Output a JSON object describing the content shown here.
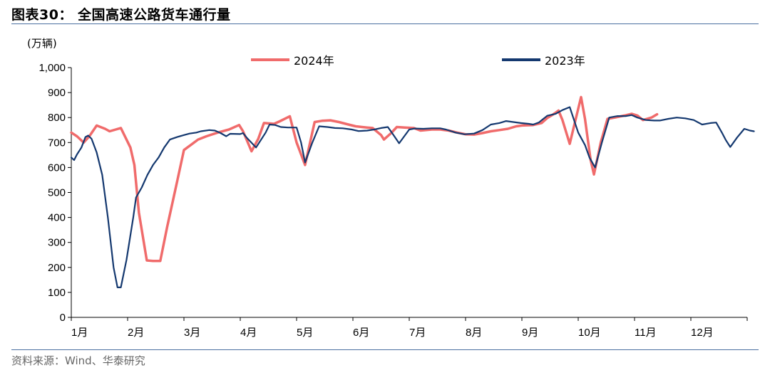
{
  "title": "图表30： 全国高速公路货车通行量",
  "source": "资料来源：Wind、华泰研究",
  "chart_data": {
    "type": "line",
    "unit": "(万辆)",
    "ylim": [
      0,
      1000
    ],
    "yticks": [
      0,
      100,
      200,
      300,
      400,
      500,
      600,
      700,
      800,
      900,
      1000
    ],
    "ytick_labels": [
      "0",
      "100",
      "200",
      "300",
      "400",
      "500",
      "600",
      "700",
      "800",
      "900",
      "1,000"
    ],
    "xlim": [
      1,
      13
    ],
    "xticks": [
      1,
      2,
      3,
      4,
      5,
      6,
      7,
      8,
      9,
      10,
      11,
      12
    ],
    "xtick_labels": [
      "1月",
      "2月",
      "3月",
      "4月",
      "5月",
      "6月",
      "7月",
      "8月",
      "9月",
      "10月",
      "11月",
      "12月"
    ],
    "legend_position": "top",
    "series": [
      {
        "name": "2024年",
        "color": "#f06b6b",
        "points": [
          [
            1.0,
            740
          ],
          [
            1.1,
            725
          ],
          [
            1.22,
            700
          ],
          [
            1.32,
            725
          ],
          [
            1.45,
            768
          ],
          [
            1.6,
            755
          ],
          [
            1.68,
            745
          ],
          [
            1.88,
            758
          ],
          [
            2.05,
            680
          ],
          [
            2.12,
            610
          ],
          [
            2.2,
            420
          ],
          [
            2.34,
            228
          ],
          [
            2.45,
            226
          ],
          [
            2.58,
            226
          ],
          [
            2.7,
            360
          ],
          [
            2.88,
            545
          ],
          [
            3.0,
            670
          ],
          [
            3.12,
            690
          ],
          [
            3.25,
            712
          ],
          [
            3.4,
            725
          ],
          [
            3.6,
            740
          ],
          [
            3.8,
            752
          ],
          [
            3.98,
            770
          ],
          [
            4.05,
            745
          ],
          [
            4.2,
            665
          ],
          [
            4.32,
            715
          ],
          [
            4.42,
            778
          ],
          [
            4.6,
            775
          ],
          [
            4.7,
            785
          ],
          [
            4.88,
            805
          ],
          [
            5.0,
            700
          ],
          [
            5.15,
            610
          ],
          [
            5.32,
            782
          ],
          [
            5.45,
            787
          ],
          [
            5.6,
            789
          ],
          [
            5.75,
            782
          ],
          [
            5.92,
            772
          ],
          [
            6.05,
            765
          ],
          [
            6.25,
            760
          ],
          [
            6.35,
            758
          ],
          [
            6.5,
            730
          ],
          [
            6.55,
            712
          ],
          [
            6.68,
            738
          ],
          [
            6.78,
            762
          ],
          [
            6.92,
            760
          ],
          [
            7.08,
            758
          ],
          [
            7.2,
            748
          ],
          [
            7.4,
            752
          ],
          [
            7.55,
            752
          ],
          [
            7.7,
            748
          ],
          [
            7.85,
            740
          ],
          [
            8.0,
            733
          ],
          [
            8.15,
            732
          ],
          [
            8.3,
            738
          ],
          [
            8.45,
            745
          ],
          [
            8.6,
            750
          ],
          [
            8.75,
            755
          ],
          [
            8.9,
            765
          ],
          [
            9.0,
            768
          ],
          [
            9.2,
            770
          ],
          [
            9.35,
            778
          ],
          [
            9.45,
            798
          ],
          [
            9.55,
            812
          ],
          [
            9.65,
            828
          ],
          [
            9.72,
            790
          ],
          [
            9.85,
            695
          ],
          [
            10.0,
            835
          ],
          [
            10.05,
            882
          ],
          [
            10.12,
            795
          ],
          [
            10.22,
            630
          ],
          [
            10.28,
            572
          ],
          [
            10.4,
            700
          ],
          [
            10.52,
            795
          ],
          [
            10.65,
            800
          ],
          [
            10.82,
            808
          ],
          [
            10.95,
            815
          ],
          [
            11.05,
            808
          ],
          [
            11.15,
            790
          ],
          [
            11.3,
            800
          ],
          [
            11.4,
            813
          ]
        ]
      },
      {
        "name": "2023年",
        "color": "#14386f",
        "points": [
          [
            1.0,
            640
          ],
          [
            1.05,
            630
          ],
          [
            1.1,
            652
          ],
          [
            1.18,
            680
          ],
          [
            1.25,
            722
          ],
          [
            1.3,
            728
          ],
          [
            1.36,
            715
          ],
          [
            1.45,
            660
          ],
          [
            1.55,
            570
          ],
          [
            1.65,
            400
          ],
          [
            1.75,
            200
          ],
          [
            1.82,
            120
          ],
          [
            1.88,
            120
          ],
          [
            1.98,
            230
          ],
          [
            2.1,
            400
          ],
          [
            2.15,
            480
          ],
          [
            2.25,
            520
          ],
          [
            2.35,
            570
          ],
          [
            2.45,
            610
          ],
          [
            2.55,
            640
          ],
          [
            2.65,
            680
          ],
          [
            2.75,
            712
          ],
          [
            2.88,
            722
          ],
          [
            3.0,
            730
          ],
          [
            3.1,
            736
          ],
          [
            3.22,
            740
          ],
          [
            3.3,
            745
          ],
          [
            3.45,
            750
          ],
          [
            3.55,
            748
          ],
          [
            3.65,
            738
          ],
          [
            3.75,
            725
          ],
          [
            3.82,
            735
          ],
          [
            4.0,
            734
          ],
          [
            4.05,
            738
          ],
          [
            4.12,
            718
          ],
          [
            4.28,
            680
          ],
          [
            4.45,
            740
          ],
          [
            4.52,
            772
          ],
          [
            4.62,
            770
          ],
          [
            4.72,
            762
          ],
          [
            4.85,
            760
          ],
          [
            5.0,
            760
          ],
          [
            5.08,
            700
          ],
          [
            5.15,
            620
          ],
          [
            5.28,
            700
          ],
          [
            5.4,
            765
          ],
          [
            5.55,
            762
          ],
          [
            5.68,
            758
          ],
          [
            5.82,
            757
          ],
          [
            5.98,
            752
          ],
          [
            6.1,
            746
          ],
          [
            6.25,
            748
          ],
          [
            6.38,
            752
          ],
          [
            6.5,
            758
          ],
          [
            6.62,
            762
          ],
          [
            6.72,
            730
          ],
          [
            6.82,
            697
          ],
          [
            7.0,
            752
          ],
          [
            7.1,
            756
          ],
          [
            7.25,
            755
          ],
          [
            7.4,
            757
          ],
          [
            7.55,
            757
          ],
          [
            7.65,
            752
          ],
          [
            7.82,
            740
          ],
          [
            7.98,
            733
          ],
          [
            8.15,
            736
          ],
          [
            8.3,
            750
          ],
          [
            8.45,
            772
          ],
          [
            8.6,
            778
          ],
          [
            8.72,
            786
          ],
          [
            8.85,
            782
          ],
          [
            8.98,
            778
          ],
          [
            9.12,
            775
          ],
          [
            9.2,
            772
          ],
          [
            9.3,
            780
          ],
          [
            9.45,
            807
          ],
          [
            9.6,
            815
          ],
          [
            9.72,
            830
          ],
          [
            9.85,
            842
          ],
          [
            10.0,
            740
          ],
          [
            10.12,
            690
          ],
          [
            10.2,
            640
          ],
          [
            10.3,
            600
          ],
          [
            10.42,
            700
          ],
          [
            10.55,
            800
          ],
          [
            10.7,
            806
          ],
          [
            10.85,
            806
          ],
          [
            10.95,
            810
          ],
          [
            11.05,
            800
          ],
          [
            11.2,
            790
          ],
          [
            11.35,
            788
          ],
          [
            11.45,
            788
          ],
          [
            11.6,
            795
          ],
          [
            11.75,
            800
          ],
          [
            11.9,
            797
          ],
          [
            12.05,
            790
          ],
          [
            12.2,
            772
          ],
          [
            12.35,
            778
          ],
          [
            12.45,
            780
          ],
          [
            12.55,
            740
          ],
          [
            12.62,
            710
          ],
          [
            12.7,
            682
          ],
          [
            12.82,
            720
          ],
          [
            12.95,
            755
          ],
          [
            13.05,
            748
          ],
          [
            13.12,
            745
          ]
        ]
      }
    ]
  }
}
